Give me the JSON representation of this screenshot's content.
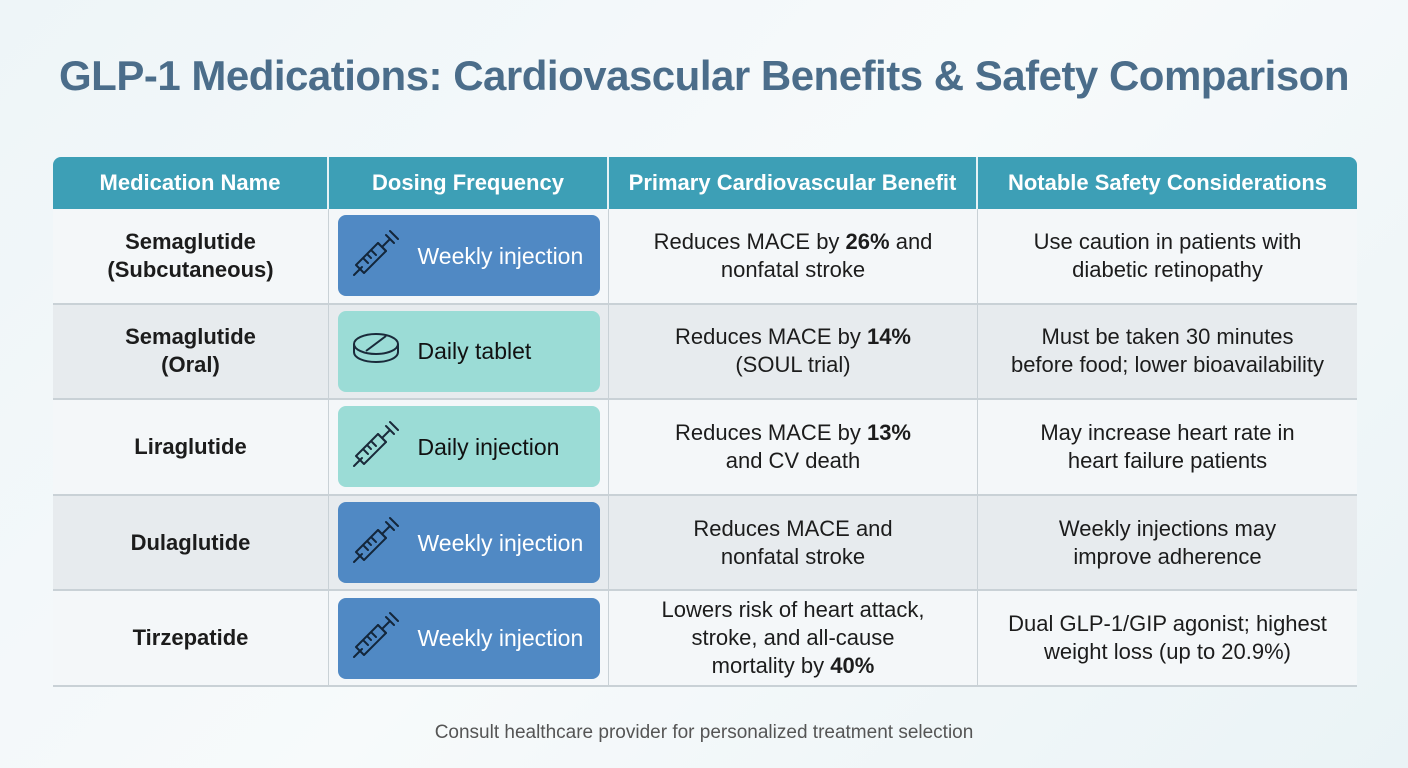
{
  "title": "GLP-1 Medications: Cardiovascular Benefits & Safety Comparison",
  "headers": [
    "Medication Name",
    "Dosing Frequency",
    "Primary Cardiovascular Benefit",
    "Notable Safety Considerations"
  ],
  "colors": {
    "header": "#3d9fb6",
    "weekly_pill": "#5089c4",
    "daily_pill": "#9bdcd6",
    "title": "#4b6d8a"
  },
  "rows": [
    {
      "name1": "Semaglutide",
      "name2": "(Subcutaneous)",
      "dosing": "Weekly injection",
      "icon": "syringe-icon",
      "style": "blue",
      "benefit": [
        "Reduces MACE by ",
        "26%",
        " and",
        "nonfatal stroke"
      ],
      "safety": [
        "Use caution in patients with",
        "diabetic retinopathy"
      ]
    },
    {
      "name1": "Semaglutide",
      "name2": "(Oral)",
      "dosing": "Daily tablet",
      "icon": "tablet-icon",
      "style": "teal",
      "benefit": [
        "Reduces MACE by ",
        "14%",
        "",
        "(SOUL trial)"
      ],
      "safety": [
        "Must be taken 30 minutes",
        "before food; lower bioavailability"
      ]
    },
    {
      "name1": "Liraglutide",
      "name2": "",
      "dosing": "Daily injection",
      "icon": "syringe-icon",
      "style": "teal",
      "benefit": [
        "Reduces MACE by ",
        "13%",
        "",
        "and CV death"
      ],
      "safety": [
        "May increase heart rate in",
        "heart failure patients"
      ]
    },
    {
      "name1": "Dulaglutide",
      "name2": "",
      "dosing": "Weekly injection",
      "icon": "syringe-icon",
      "style": "blue",
      "benefit": [
        "Reduces MACE and",
        "",
        "",
        "nonfatal stroke"
      ],
      "safety": [
        "Weekly injections may",
        "improve adherence"
      ]
    },
    {
      "name1": "Tirzepatide",
      "name2": "",
      "dosing": "Weekly injection",
      "icon": "syringe-icon",
      "style": "blue",
      "benefit": [
        "Lowers risk of heart attack,",
        "stroke, and all-cause",
        "mortality by ",
        "40%"
      ],
      "safety": [
        "Dual GLP-1/GIP agonist; highest",
        "weight loss (up to 20.9%)"
      ]
    }
  ],
  "footer": "Consult healthcare provider for personalized treatment selection"
}
